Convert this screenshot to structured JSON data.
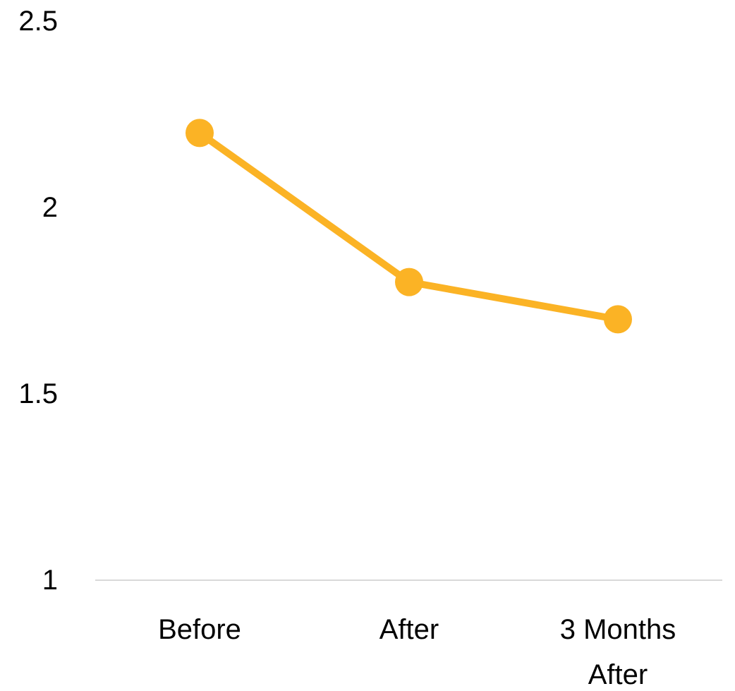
{
  "chart_data": {
    "type": "line",
    "categories": [
      "Before",
      "After",
      "3 Months After"
    ],
    "series": [
      {
        "values": [
          2.2,
          1.8,
          1.7
        ],
        "color": "#FBB325"
      }
    ],
    "y_ticks": [
      "1",
      "1.5",
      "2",
      "2.5"
    ],
    "ylim": [
      1,
      2.5
    ],
    "grid": false,
    "legend": "none",
    "axis_color": "#D9D9D9",
    "title": "",
    "xlabel": "",
    "ylabel": ""
  }
}
